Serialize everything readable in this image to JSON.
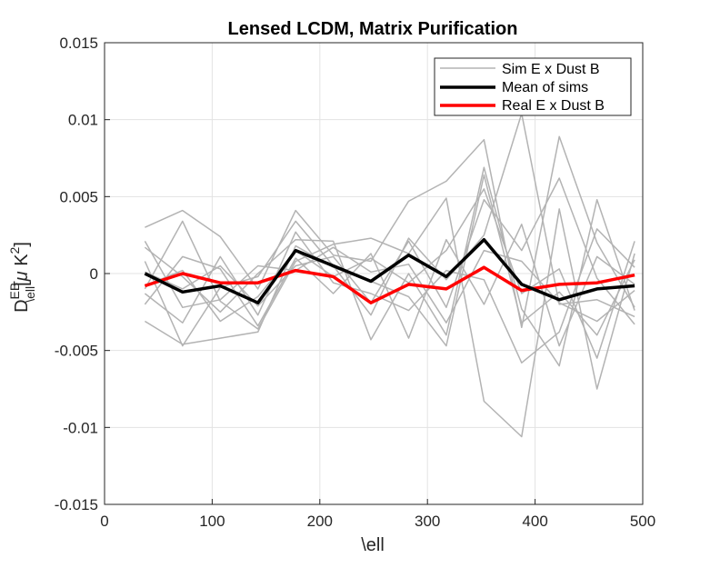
{
  "chart_data": {
    "type": "line",
    "title": "Lensed LCDM, Matrix Purification",
    "xlabel": "\\ell",
    "ylabel": {
      "base": "D",
      "sup": "EB",
      "sub": "\\ell",
      "units_open": "[",
      "units_mu": "μ",
      "units_k": " K",
      "units_pow": "2",
      "units_close": "]"
    },
    "xlim": [
      0,
      500
    ],
    "ylim": [
      -0.015,
      0.015
    ],
    "xticks": [
      0,
      100,
      200,
      300,
      400,
      500
    ],
    "xtick_labels": [
      "0",
      "100",
      "200",
      "300",
      "400",
      "500"
    ],
    "yticks": [
      -0.015,
      -0.01,
      -0.005,
      0,
      0.005,
      0.01,
      0.015
    ],
    "ytick_labels": [
      "-0.015",
      "-0.01",
      "-0.005",
      "0",
      "0.005",
      "0.01",
      "0.015"
    ],
    "grid": true,
    "legend_position": "top-right",
    "x": [
      37.5,
      72.5,
      107.5,
      142.5,
      177.5,
      212.5,
      247.5,
      282.5,
      317.5,
      352.5,
      387.5,
      422.5,
      457.5,
      492.5
    ],
    "series": [
      {
        "name": "Sim E x Dust B",
        "color": "#b3b3b3",
        "width": 1.5,
        "group": "sims",
        "sims": [
          [
            0.003,
            0.0041,
            0.0024,
            -0.001,
            0.0041,
            0.0012,
            0.0008,
            0.0047,
            0.006,
            0.0087,
            -0.0035,
            0.0089,
            0.002,
            -0.0022
          ],
          [
            0.0017,
            -0.0002,
            -0.0025,
            0.0,
            0.0022,
            0.0021,
            -0.0043,
            0.0,
            -0.004,
            0.0069,
            -0.0023,
            -0.006,
            0.0048,
            -0.0024
          ],
          [
            -0.001,
            0.0034,
            -0.0018,
            -0.0036,
            0.0008,
            0.0019,
            0.0023,
            0.0013,
            0.0049,
            -0.0083,
            -0.0106,
            0.0042,
            -0.0075,
            0.0013
          ],
          [
            0.0008,
            -0.0047,
            -0.0009,
            -0.0002,
            0.0034,
            0.0005,
            -0.0027,
            0.0023,
            -0.0004,
            0.0025,
            0.0104,
            -0.002,
            -0.0017,
            -0.0028
          ],
          [
            -0.0008,
            0.0002,
            -0.0031,
            -0.0015,
            0.0015,
            -0.0002,
            0.001,
            -0.0006,
            0.0015,
            0.0055,
            -0.0013,
            0.0003,
            -0.0055,
            0.0021
          ],
          [
            0.0001,
            -0.001,
            0.0005,
            -0.0021,
            0.0005,
            0.0011,
            -0.0019,
            0.0021,
            -0.0022,
            0.0048,
            0.0015,
            0.0062,
            -0.0003,
            -0.0033
          ],
          [
            -0.0013,
            -0.0032,
            0.0011,
            -0.0027,
            0.0027,
            -0.0006,
            -0.0013,
            -0.0024,
            0.0002,
            -0.0004,
            -0.0058,
            -0.0038,
            0.0029,
            0.0004
          ],
          [
            0.0021,
            -0.0022,
            -0.0017,
            0.0005,
            0.0002,
            0.0017,
            0.0001,
            0.0006,
            -0.0032,
            0.0015,
            0.0008,
            -0.0019,
            -0.0031,
            -0.0011
          ],
          [
            -0.002,
            0.0011,
            0.0003,
            -0.0034,
            0.001,
            -0.0013,
            0.0013,
            -0.0042,
            0.0022,
            -0.002,
            0.0032,
            -0.0047,
            0.0011,
            -0.0007
          ],
          [
            -0.0031,
            -0.0046,
            -0.0042,
            -0.0038,
            0.0018,
            0.0004,
            -0.0005,
            -0.0015,
            -0.0047,
            0.0064,
            -0.0032,
            -0.0012,
            -0.004,
            0.0009
          ]
        ]
      },
      {
        "name": "Mean of sims",
        "color": "#000000",
        "width": 3.5,
        "values": [
          0.0,
          -0.0012,
          -0.0008,
          -0.0019,
          0.0015,
          0.0005,
          -0.0005,
          0.0012,
          -0.0002,
          0.0022,
          -0.0007,
          -0.0017,
          -0.001,
          -0.0008
        ]
      },
      {
        "name": "Real E x Dust B",
        "color": "#ff0000",
        "width": 3.5,
        "values": [
          -0.0008,
          0.0,
          -0.0006,
          -0.0006,
          0.0002,
          -0.0002,
          -0.0019,
          -0.0007,
          -0.001,
          0.0004,
          -0.0011,
          -0.0007,
          -0.0006,
          -0.0001
        ]
      }
    ]
  }
}
